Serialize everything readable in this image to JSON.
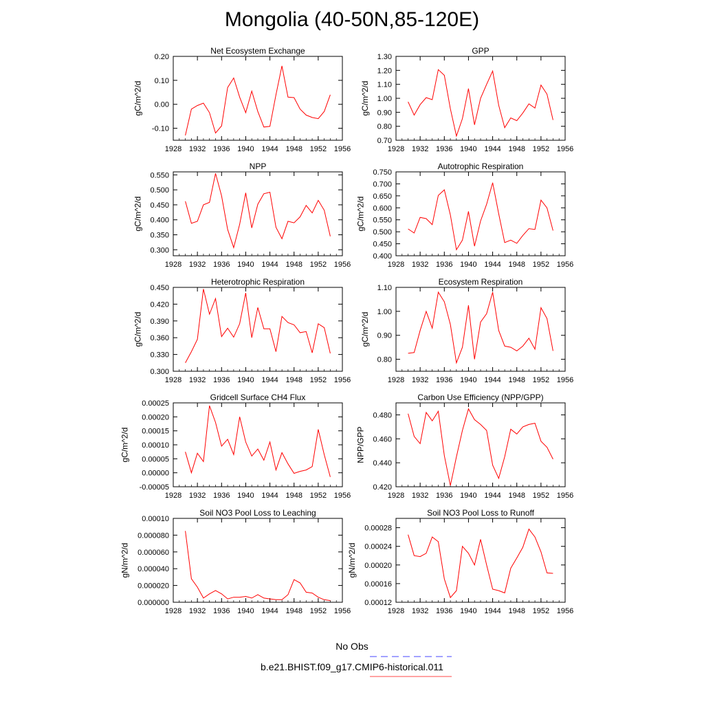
{
  "title": "Mongolia (40-50N,85-120E)",
  "legend": [
    {
      "label": "No Obs",
      "color": "#4444ff",
      "dash": true
    },
    {
      "label": "b.e21.BHIST.f09_g17.CMIP6-historical.011",
      "color": "#ff4444",
      "dash": false
    }
  ],
  "colors": {
    "series": "#ff0000",
    "axis": "#000000"
  },
  "chart_data": [
    {
      "type": "line",
      "title": "Net Ecosystem Exchange",
      "xlabel": "",
      "ylabel": "gC/m^2/d",
      "xlim": [
        1928,
        1956
      ],
      "ylim": [
        -0.15,
        0.2
      ],
      "xticks": [
        "1928",
        "1932",
        "1936",
        "1940",
        "1944",
        "1948",
        "1952",
        "1956"
      ],
      "yticks": [
        "-0.10",
        "0.00",
        "0.10",
        "0.20"
      ],
      "x": [
        1930,
        1931,
        1932,
        1933,
        1934,
        1935,
        1936,
        1937,
        1938,
        1939,
        1940,
        1941,
        1942,
        1943,
        1944,
        1945,
        1946,
        1947,
        1948,
        1949,
        1950,
        1951,
        1952,
        1953,
        1954
      ],
      "series": [
        {
          "values": [
            -0.13,
            -0.02,
            -0.005,
            0.005,
            -0.035,
            -0.12,
            -0.09,
            0.07,
            0.11,
            0.03,
            -0.035,
            0.055,
            -0.03,
            -0.095,
            -0.092,
            0.04,
            0.16,
            0.03,
            0.028,
            -0.02,
            -0.045,
            -0.055,
            -0.06,
            -0.03,
            0.04
          ]
        }
      ]
    },
    {
      "type": "line",
      "title": "GPP",
      "xlabel": "",
      "ylabel": "gC/m^2/d",
      "xlim": [
        1928,
        1956
      ],
      "ylim": [
        0.7,
        1.3
      ],
      "xticks": [
        "1928",
        "1932",
        "1936",
        "1940",
        "1944",
        "1948",
        "1952",
        "1956"
      ],
      "yticks": [
        "0.70",
        "0.80",
        "0.90",
        "1.00",
        "1.10",
        "1.20",
        "1.30"
      ],
      "x": [
        1930,
        1931,
        1932,
        1933,
        1934,
        1935,
        1936,
        1937,
        1938,
        1939,
        1940,
        1941,
        1942,
        1943,
        1944,
        1945,
        1946,
        1947,
        1948,
        1949,
        1950,
        1951,
        1952,
        1953,
        1954
      ],
      "series": [
        {
          "values": [
            0.975,
            0.88,
            0.955,
            1.005,
            0.99,
            1.205,
            1.165,
            0.925,
            0.73,
            0.855,
            1.07,
            0.81,
            1.0,
            1.1,
            1.195,
            0.95,
            0.79,
            0.86,
            0.84,
            0.895,
            0.96,
            0.93,
            1.095,
            1.03,
            0.845
          ]
        }
      ]
    },
    {
      "type": "line",
      "title": "NPP",
      "xlabel": "",
      "ylabel": "gC/m^2/d",
      "xlim": [
        1928,
        1956
      ],
      "ylim": [
        0.28,
        0.56
      ],
      "xticks": [
        "1928",
        "1932",
        "1936",
        "1940",
        "1944",
        "1948",
        "1952",
        "1956"
      ],
      "yticks": [
        "0.300",
        "0.350",
        "0.400",
        "0.450",
        "0.500",
        "0.550"
      ],
      "x": [
        1930,
        1931,
        1932,
        1933,
        1934,
        1935,
        1936,
        1937,
        1938,
        1939,
        1940,
        1941,
        1942,
        1943,
        1944,
        1945,
        1946,
        1947,
        1948,
        1949,
        1950,
        1951,
        1952,
        1953,
        1954
      ],
      "series": [
        {
          "values": [
            0.462,
            0.388,
            0.395,
            0.45,
            0.458,
            0.555,
            0.48,
            0.368,
            0.307,
            0.385,
            0.49,
            0.373,
            0.452,
            0.487,
            0.492,
            0.375,
            0.337,
            0.395,
            0.39,
            0.41,
            0.448,
            0.423,
            0.465,
            0.432,
            0.345
          ]
        }
      ]
    },
    {
      "type": "line",
      "title": "Autotrophic Respiration",
      "xlabel": "",
      "ylabel": "gC/m^2/d",
      "xlim": [
        1928,
        1956
      ],
      "ylim": [
        0.4,
        0.75
      ],
      "xticks": [
        "1928",
        "1932",
        "1936",
        "1940",
        "1944",
        "1948",
        "1952",
        "1956"
      ],
      "yticks": [
        "0.400",
        "0.450",
        "0.500",
        "0.550",
        "0.600",
        "0.650",
        "0.700",
        "0.750"
      ],
      "x": [
        1930,
        1931,
        1932,
        1933,
        1934,
        1935,
        1936,
        1937,
        1938,
        1939,
        1940,
        1941,
        1942,
        1943,
        1944,
        1945,
        1946,
        1947,
        1948,
        1949,
        1950,
        1951,
        1952,
        1953,
        1954
      ],
      "series": [
        {
          "values": [
            0.512,
            0.495,
            0.56,
            0.555,
            0.53,
            0.652,
            0.675,
            0.57,
            0.425,
            0.465,
            0.585,
            0.44,
            0.545,
            0.615,
            0.705,
            0.575,
            0.455,
            0.465,
            0.452,
            0.485,
            0.513,
            0.51,
            0.632,
            0.6,
            0.505
          ]
        }
      ]
    },
    {
      "type": "line",
      "title": "Heterotrophic Respiration",
      "xlabel": "",
      "ylabel": "gC/m^2/d",
      "xlim": [
        1928,
        1956
      ],
      "ylim": [
        0.3,
        0.45
      ],
      "xticks": [
        "1928",
        "1932",
        "1936",
        "1940",
        "1944",
        "1948",
        "1952",
        "1956"
      ],
      "yticks": [
        "0.300",
        "0.330",
        "0.360",
        "0.390",
        "0.420",
        "0.450"
      ],
      "x": [
        1930,
        1931,
        1932,
        1933,
        1934,
        1935,
        1936,
        1937,
        1938,
        1939,
        1940,
        1941,
        1942,
        1943,
        1944,
        1945,
        1946,
        1947,
        1948,
        1949,
        1950,
        1951,
        1952,
        1953,
        1954
      ],
      "series": [
        {
          "values": [
            0.315,
            0.335,
            0.357,
            0.447,
            0.402,
            0.43,
            0.362,
            0.377,
            0.361,
            0.385,
            0.44,
            0.36,
            0.414,
            0.376,
            0.376,
            0.335,
            0.398,
            0.387,
            0.383,
            0.369,
            0.371,
            0.333,
            0.385,
            0.378,
            0.332
          ]
        }
      ]
    },
    {
      "type": "line",
      "title": "Ecosystem Respiration",
      "xlabel": "",
      "ylabel": "gC/m^2/d",
      "xlim": [
        1928,
        1956
      ],
      "ylim": [
        0.75,
        1.1
      ],
      "xticks": [
        "1928",
        "1932",
        "1936",
        "1940",
        "1944",
        "1948",
        "1952",
        "1956"
      ],
      "yticks": [
        "0.80",
        "0.90",
        "1.00",
        "1.10"
      ],
      "x": [
        1930,
        1931,
        1932,
        1933,
        1934,
        1935,
        1936,
        1937,
        1938,
        1939,
        1940,
        1941,
        1942,
        1943,
        1944,
        1945,
        1946,
        1947,
        1948,
        1949,
        1950,
        1951,
        1952,
        1953,
        1954
      ],
      "series": [
        {
          "values": [
            0.825,
            0.828,
            0.92,
            1.0,
            0.93,
            1.08,
            1.04,
            0.945,
            0.785,
            0.85,
            1.025,
            0.8,
            0.955,
            0.99,
            1.08,
            0.92,
            0.855,
            0.85,
            0.835,
            0.855,
            0.888,
            0.842,
            1.015,
            0.97,
            0.835
          ]
        }
      ]
    },
    {
      "type": "line",
      "title": "Gridcell Surface CH4 Flux",
      "xlabel": "",
      "ylabel": "gC/m^2/d",
      "xlim": [
        1928,
        1956
      ],
      "ylim": [
        -5e-05,
        0.00025
      ],
      "xticks": [
        "1928",
        "1932",
        "1936",
        "1940",
        "1944",
        "1948",
        "1952",
        "1956"
      ],
      "yticks": [
        "-0.00005",
        "0.00000",
        "0.00005",
        "0.00010",
        "0.00015",
        "0.00020",
        "0.00025"
      ],
      "x": [
        1930,
        1931,
        1932,
        1933,
        1934,
        1935,
        1936,
        1937,
        1938,
        1939,
        1940,
        1941,
        1942,
        1943,
        1944,
        1945,
        1946,
        1947,
        1948,
        1949,
        1950,
        1951,
        1952,
        1953,
        1954
      ],
      "series": [
        {
          "values": [
            7.5e-05,
            0.0,
            7e-05,
            4e-05,
            0.00024,
            0.00018,
            9.5e-05,
            0.00012,
            6.5e-05,
            0.0002,
            0.00011,
            6e-05,
            8.5e-05,
            4.5e-05,
            0.00011,
            1e-05,
            7.2e-05,
            3.2e-05,
            -2e-06,
            5e-06,
            1e-05,
            2.2e-05,
            0.000155,
            6.5e-05,
            -1.5e-05
          ]
        }
      ]
    },
    {
      "type": "line",
      "title": "Carbon Use Efficiency (NPP/GPP)",
      "xlabel": "",
      "ylabel": "NPP/GPP",
      "xlim": [
        1928,
        1956
      ],
      "ylim": [
        0.42,
        0.49
      ],
      "xticks": [
        "1928",
        "1932",
        "1936",
        "1940",
        "1944",
        "1948",
        "1952",
        "1956"
      ],
      "yticks": [
        "0.420",
        "0.440",
        "0.460",
        "0.480"
      ],
      "x": [
        1930,
        1931,
        1932,
        1933,
        1934,
        1935,
        1936,
        1937,
        1938,
        1939,
        1940,
        1941,
        1942,
        1943,
        1944,
        1945,
        1946,
        1947,
        1948,
        1949,
        1950,
        1951,
        1952,
        1953,
        1954
      ],
      "series": [
        {
          "values": [
            0.481,
            0.462,
            0.456,
            0.482,
            0.475,
            0.483,
            0.446,
            0.421,
            0.445,
            0.467,
            0.485,
            0.476,
            0.472,
            0.467,
            0.438,
            0.427,
            0.445,
            0.468,
            0.464,
            0.47,
            0.472,
            0.473,
            0.458,
            0.453,
            0.443
          ]
        }
      ]
    },
    {
      "type": "line",
      "title": "Soil NO3 Pool Loss to Leaching",
      "xlabel": "",
      "ylabel": "gN/m^2/d",
      "xlim": [
        1928,
        1956
      ],
      "ylim": [
        0.0,
        0.0001
      ],
      "xticks": [
        "1928",
        "1932",
        "1936",
        "1940",
        "1944",
        "1948",
        "1952",
        "1956"
      ],
      "yticks": [
        "0.000000",
        "0.000020",
        "0.000040",
        "0.000060",
        "0.000080",
        "0.00010"
      ],
      "x": [
        1930,
        1931,
        1932,
        1933,
        1934,
        1935,
        1936,
        1937,
        1938,
        1939,
        1940,
        1941,
        1942,
        1943,
        1944,
        1945,
        1946,
        1947,
        1948,
        1949,
        1950,
        1951,
        1952,
        1953,
        1954
      ],
      "series": [
        {
          "values": [
            8.5e-05,
            2.8e-05,
            1.8e-05,
            5e-06,
            1e-05,
            1.4e-05,
            1e-05,
            4e-06,
            6e-06,
            6e-06,
            7e-06,
            5e-06,
            9e-06,
            5e-06,
            4e-06,
            3e-06,
            3e-06,
            9e-06,
            2.7e-05,
            2.3e-05,
            1.2e-05,
            1.1e-05,
            6e-06,
            3e-06,
            2e-06
          ]
        }
      ]
    },
    {
      "type": "line",
      "title": "Soil NO3 Pool Loss to Runoff",
      "xlabel": "",
      "ylabel": "gN/m^2/d",
      "xlim": [
        1928,
        1956
      ],
      "ylim": [
        0.00012,
        0.0003
      ],
      "xticks": [
        "1928",
        "1932",
        "1936",
        "1940",
        "1944",
        "1948",
        "1952",
        "1956"
      ],
      "yticks": [
        "0.00012",
        "0.00016",
        "0.00020",
        "0.00024",
        "0.00028"
      ],
      "x": [
        1930,
        1931,
        1932,
        1933,
        1934,
        1935,
        1936,
        1937,
        1938,
        1939,
        1940,
        1941,
        1942,
        1943,
        1944,
        1945,
        1946,
        1947,
        1948,
        1949,
        1950,
        1951,
        1952,
        1953,
        1954
      ],
      "series": [
        {
          "values": [
            0.000265,
            0.00022,
            0.000218,
            0.000225,
            0.00026,
            0.00025,
            0.00017,
            0.00013,
            0.000145,
            0.00024,
            0.000225,
            0.0002,
            0.000255,
            0.0002,
            0.000148,
            0.000145,
            0.00014,
            0.000193,
            0.000215,
            0.000238,
            0.000277,
            0.00026,
            0.000228,
            0.000183,
            0.000182
          ]
        }
      ]
    }
  ]
}
